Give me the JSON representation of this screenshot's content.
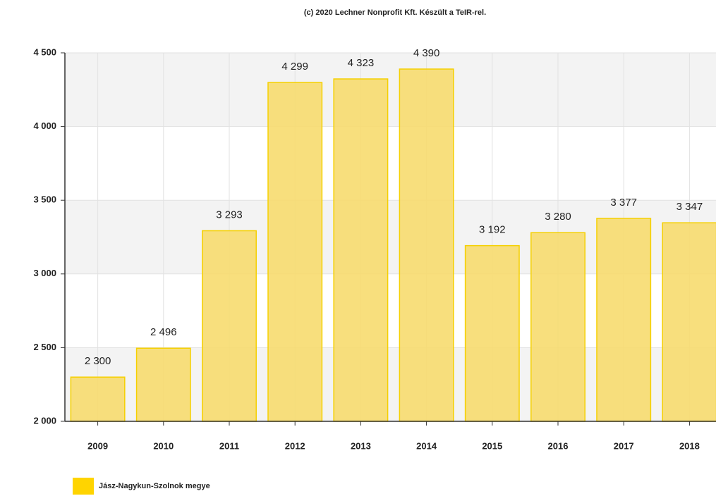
{
  "chart_data": {
    "type": "bar",
    "title": "(c) 2020 Lechner Nonprofit Kft. Készült a TeIR-rel.",
    "categories": [
      "2009",
      "2010",
      "2011",
      "2012",
      "2013",
      "2014",
      "2015",
      "2016",
      "2017",
      "2018"
    ],
    "series": [
      {
        "name": "Jász-Nagykun-Szolnok megye",
        "color": "#f7dc6f",
        "values": [
          2300,
          2496,
          3293,
          4299,
          4323,
          4390,
          3192,
          3280,
          3377,
          3347
        ],
        "value_labels": [
          "2 300",
          "2 496",
          "3 293",
          "4 299",
          "4 323",
          "4 390",
          "3 192",
          "3 280",
          "3 377",
          "3 347"
        ]
      }
    ],
    "ylim": [
      2000,
      4500
    ],
    "yticks": [
      {
        "value": 2000,
        "label": "2 000"
      },
      {
        "value": 2500,
        "label": "2 500"
      },
      {
        "value": 3000,
        "label": "3 000"
      },
      {
        "value": 3500,
        "label": "3 500"
      },
      {
        "value": 4000,
        "label": "4 000"
      },
      {
        "value": 4500,
        "label": "4 500"
      }
    ],
    "grid": true
  }
}
